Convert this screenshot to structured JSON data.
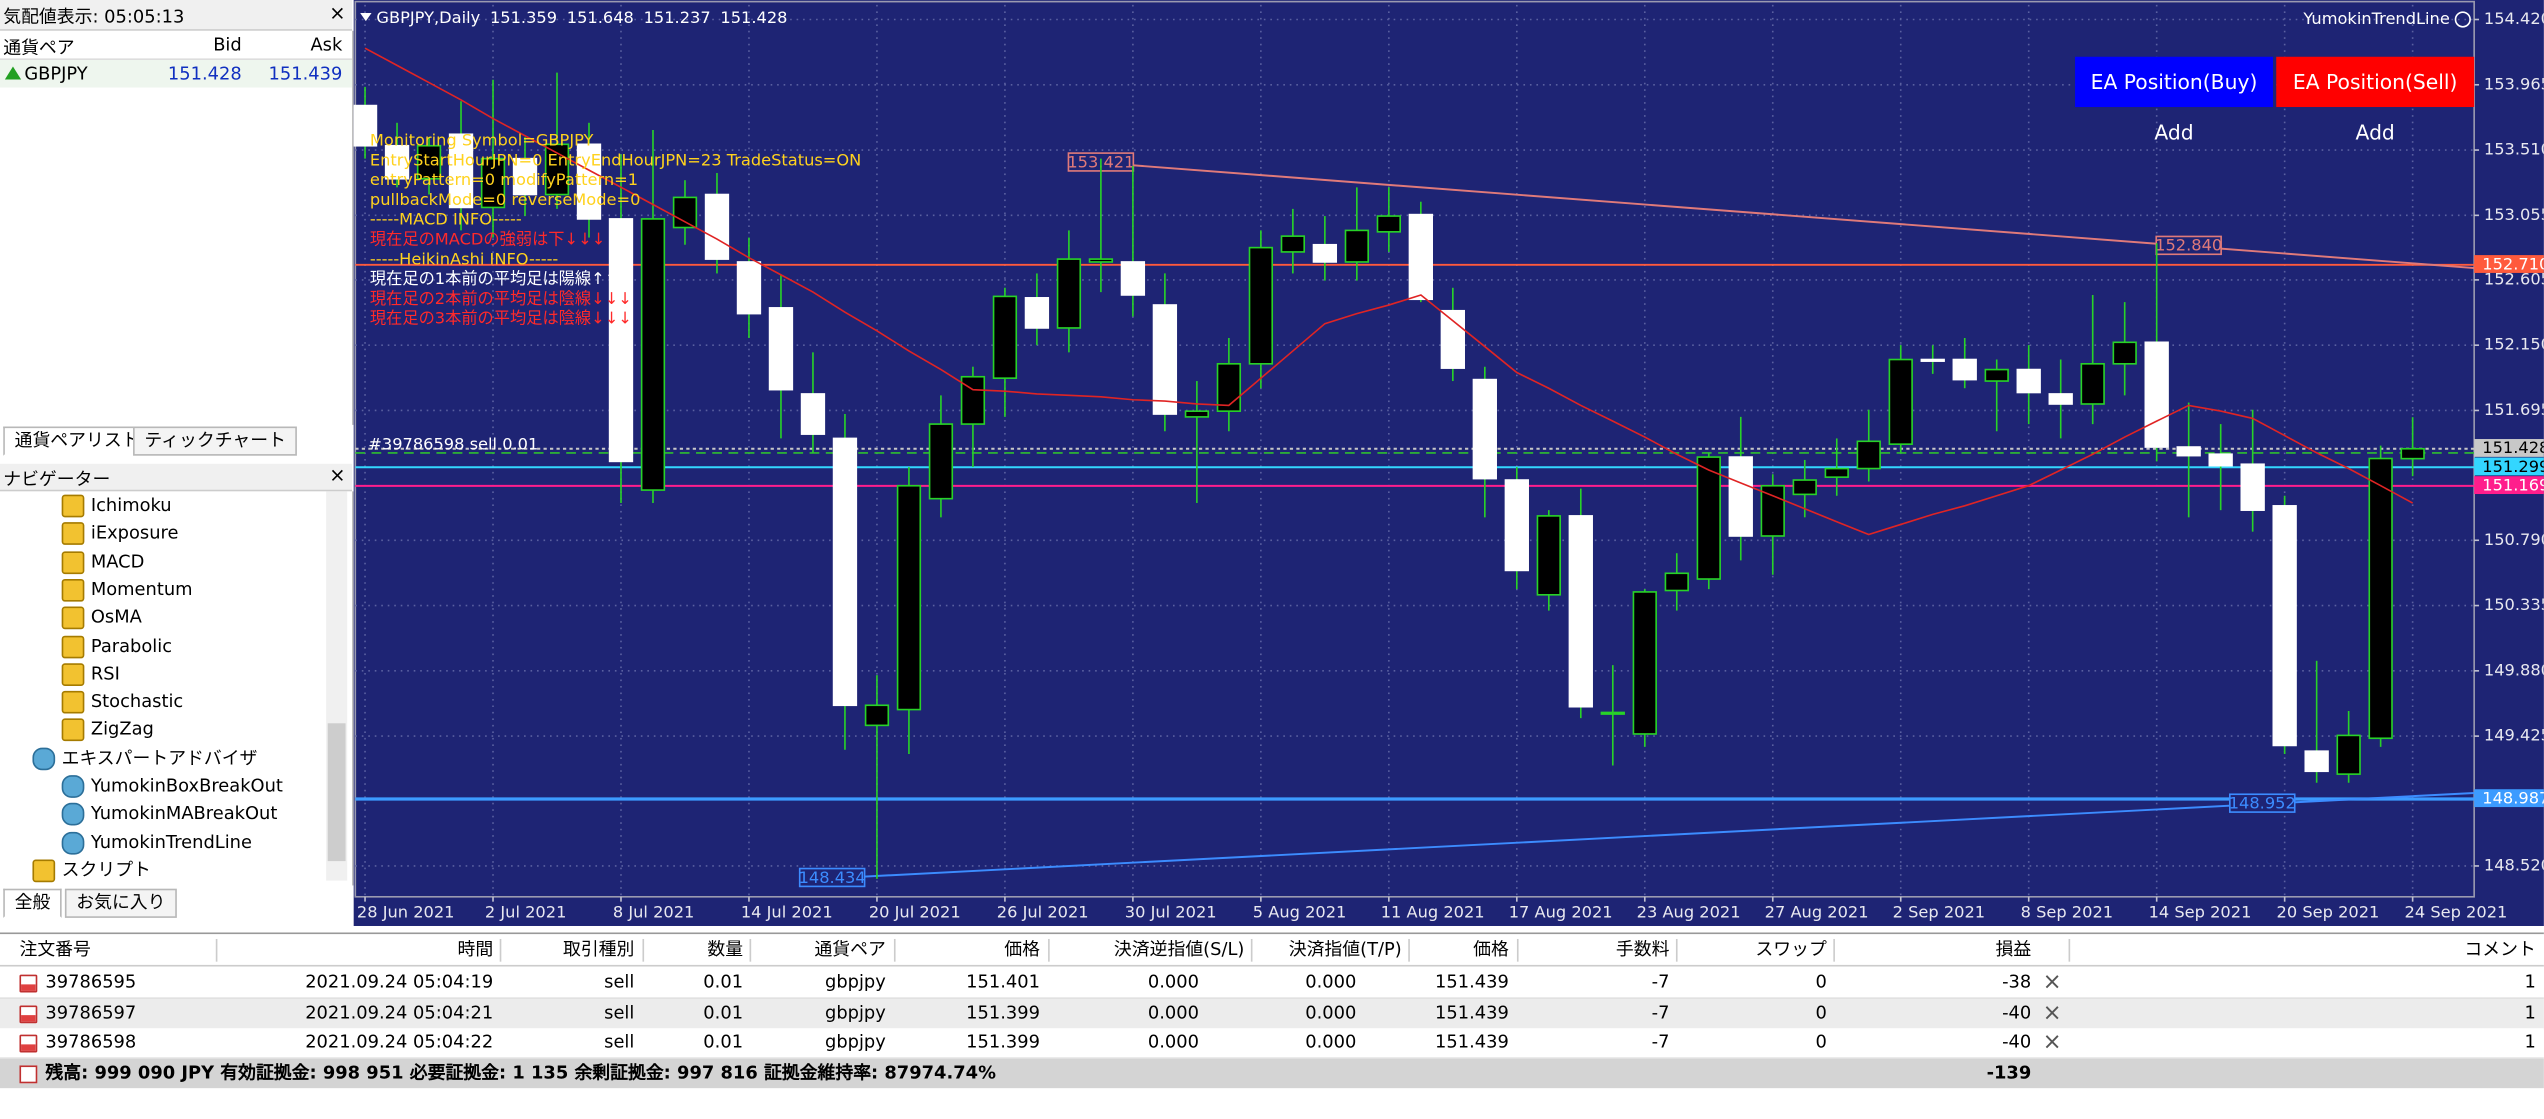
{
  "market_watch": {
    "title": "気配値表示: 05:05:13",
    "headers": [
      "通貨ペア",
      "Bid",
      "Ask"
    ],
    "row": [
      "GBPJPY",
      "151.428",
      "151.439"
    ],
    "tabs": [
      "通貨ペアリスト",
      "ティックチャート"
    ]
  },
  "navigator": {
    "title": "ナビゲーター",
    "indicators": [
      "Ichimoku",
      "iExposure",
      "MACD",
      "Momentum",
      "OsMA",
      "Parabolic",
      "RSI",
      "Stochastic",
      "ZigZag"
    ],
    "experts_folder": "エキスパートアドバイザ",
    "experts": [
      "YumokinBoxBreakOut",
      "YumokinMABreakOut",
      "YumokinTrendLine"
    ],
    "scripts_folder": "スクリプト",
    "tabs": [
      "全般",
      "お気に入り"
    ]
  },
  "chart_data": {
    "type": "candlestick",
    "title": "GBPJPY,Daily",
    "indicator_name": "YumokinTrendLine",
    "categories": [
      "28 Jun 2021",
      null,
      null,
      null,
      "2 Jul 2021",
      null,
      null,
      null,
      "8 Jul 2021",
      null,
      null,
      null,
      "14 Jul 2021",
      null,
      null,
      null,
      "20 Jul 2021",
      null,
      null,
      null,
      "26 Jul 2021",
      null,
      null,
      null,
      "30 Jul 2021",
      null,
      null,
      null,
      "5 Aug 2021",
      null,
      null,
      null,
      "11 Aug 2021",
      null,
      null,
      null,
      "17 Aug 2021",
      null,
      null,
      null,
      "23 Aug 2021",
      null,
      null,
      null,
      "27 Aug 2021",
      null,
      null,
      null,
      "2 Sep 2021",
      null,
      null,
      null,
      "8 Sep 2021",
      null,
      null,
      null,
      "14 Sep 2021",
      null,
      null,
      null,
      "20 Sep 2021",
      null,
      null,
      null,
      "24 Sep 2021"
    ],
    "open": [
      153.82,
      153.54,
      153.31,
      153.62,
      153.11,
      153.45,
      153.2,
      153.55,
      153.03,
      151.14,
      152.97,
      153.2,
      152.73,
      152.41,
      151.81,
      151.5,
      149.5,
      149.61,
      151.08,
      151.6,
      151.92,
      152.48,
      152.27,
      152.73,
      152.73,
      152.43,
      151.65,
      151.69,
      152.02,
      152.8,
      152.85,
      152.73,
      152.94,
      153.06,
      152.39,
      151.91,
      151.21,
      150.41,
      150.96,
      149.58,
      149.44,
      150.44,
      150.52,
      151.37,
      150.82,
      151.11,
      151.23,
      151.29,
      151.46,
      152.05,
      152.05,
      151.9,
      151.98,
      151.81,
      151.74,
      152.02,
      152.17,
      151.44,
      151.39,
      151.32,
      151.03,
      149.32,
      149.16,
      149.41,
      151.359
    ],
    "high": [
      153.95,
      153.7,
      153.6,
      153.85,
      154.0,
      153.6,
      154.05,
      153.7,
      153.48,
      153.65,
      153.3,
      153.35,
      152.9,
      152.64,
      152.1,
      151.67,
      149.85,
      151.3,
      151.8,
      152.0,
      152.55,
      152.65,
      152.95,
      153.45,
      153.4,
      152.65,
      151.9,
      152.2,
      152.95,
      153.1,
      153.05,
      153.25,
      153.25,
      153.15,
      152.55,
      152.0,
      151.3,
      151.0,
      151.15,
      149.92,
      150.45,
      150.7,
      151.4,
      151.65,
      151.25,
      151.35,
      151.5,
      151.7,
      152.15,
      152.15,
      152.2,
      152.05,
      152.15,
      152.05,
      152.5,
      152.45,
      152.86,
      151.75,
      151.6,
      151.7,
      151.1,
      149.95,
      149.6,
      151.45,
      151.648
    ],
    "low": [
      153.45,
      153.25,
      153.2,
      152.95,
      152.9,
      153.05,
      153.1,
      152.9,
      151.05,
      151.05,
      152.85,
      152.65,
      152.2,
      151.5,
      151.4,
      149.33,
      148.43,
      149.3,
      150.95,
      151.3,
      151.65,
      152.15,
      152.1,
      152.52,
      152.35,
      151.55,
      151.05,
      151.55,
      151.85,
      152.65,
      152.6,
      152.6,
      152.8,
      152.45,
      151.9,
      150.95,
      150.45,
      150.3,
      149.55,
      149.22,
      149.35,
      150.3,
      150.45,
      150.65,
      150.55,
      150.95,
      151.1,
      151.2,
      151.4,
      151.95,
      151.85,
      151.55,
      151.6,
      151.5,
      151.6,
      151.8,
      151.34,
      150.95,
      151.0,
      150.85,
      149.3,
      149.1,
      149.1,
      149.35,
      151.237
    ],
    "close": [
      153.54,
      153.31,
      153.54,
      153.11,
      153.45,
      153.2,
      153.55,
      153.03,
      151.34,
      153.03,
      153.18,
      152.75,
      152.37,
      151.84,
      151.53,
      149.64,
      149.64,
      151.17,
      151.6,
      151.93,
      152.49,
      152.27,
      152.75,
      152.75,
      152.5,
      151.67,
      151.69,
      152.02,
      152.83,
      152.91,
      152.73,
      152.95,
      153.05,
      152.47,
      151.99,
      151.22,
      150.58,
      150.96,
      149.63,
      149.59,
      150.43,
      150.56,
      151.37,
      150.82,
      151.17,
      151.21,
      151.29,
      151.48,
      152.05,
      152.04,
      151.91,
      151.98,
      151.82,
      151.74,
      152.02,
      152.17,
      151.44,
      151.38,
      151.31,
      151.0,
      149.36,
      149.18,
      149.43,
      151.36,
      151.428
    ],
    "ma": {
      "color": "#e02424",
      "values": [
        154.22,
        154.1,
        153.98,
        153.86,
        153.73,
        153.61,
        153.49,
        153.37,
        153.25,
        153.13,
        153.01,
        152.89,
        152.76,
        152.64,
        152.52,
        152.38,
        152.25,
        152.11,
        151.98,
        151.84,
        151.83,
        151.81,
        151.8,
        151.79,
        151.77,
        151.76,
        151.74,
        151.73,
        151.92,
        152.11,
        152.3,
        152.37,
        152.43,
        152.5,
        152.32,
        152.14,
        151.96,
        151.85,
        151.73,
        151.62,
        151.51,
        151.39,
        151.28,
        151.19,
        151.1,
        151.01,
        150.92,
        150.83,
        150.9,
        150.97,
        151.03,
        151.1,
        151.17,
        151.28,
        151.39,
        151.51,
        151.62,
        151.73,
        151.69,
        151.64,
        151.52,
        151.4,
        151.29,
        151.17,
        151.05
      ]
    },
    "up_color": "#000000",
    "down_color": "#ffffff",
    "up_outline": "#28d228",
    "wick_color": "#28d228",
    "ylim": [
      148.305,
      154.522
    ],
    "yticks": [
      {
        "value": 154.42,
        "label": "154.420"
      },
      {
        "value": 153.965,
        "label": "153.965"
      },
      {
        "value": 153.51,
        "label": "153.510"
      },
      {
        "value": 153.055,
        "label": "153.055"
      },
      {
        "value": 152.605,
        "label": "152.605"
      },
      {
        "value": 152.15,
        "label": "152.150"
      },
      {
        "value": 151.695,
        "label": "151.695"
      },
      {
        "value": 150.79,
        "label": "150.790"
      },
      {
        "value": 150.335,
        "label": "150.335"
      },
      {
        "value": 149.88,
        "label": "149.880"
      },
      {
        "value": 149.425,
        "label": "149.425"
      },
      {
        "value": 148.52,
        "label": "148.520"
      }
    ],
    "grid": true,
    "levels": [
      {
        "value": 152.71,
        "label": "152.710",
        "color": "#ff5a3c"
      },
      {
        "value": 151.428,
        "label": "151.428",
        "color": "#c8c8c8"
      },
      {
        "value": 151.299,
        "label": "151.299",
        "color": "#33d6ff"
      },
      {
        "value": 151.169,
        "label": "151.169",
        "color": "#ff1e8c"
      },
      {
        "value": 148.987,
        "label": "148.987",
        "color": "#3c9bff"
      }
    ],
    "order_line": {
      "value": 151.399,
      "label": "#39786598 sell 0.01",
      "color": "#2fbf2f"
    },
    "trendlines": [
      {
        "color": "#e07a7a",
        "start": {
          "index": 23,
          "value": 153.421,
          "label": "153.421"
        },
        "end": {
          "index": 57,
          "value": 152.84,
          "label": "152.840"
        }
      },
      {
        "color": "#3c8cff",
        "start": {
          "index": 14.6,
          "value": 148.434,
          "label": "148.434"
        },
        "end": {
          "index": 59.3,
          "value": 148.952,
          "label": "148.952"
        }
      }
    ],
    "info_lines": [
      {
        "text": "Monitoring Symbol=GBPJPY",
        "color": "#ffd21e"
      },
      {
        "text": "EntryStartHourJPN=0 EntryEndHourJPN=23 TradeStatus=ON",
        "color": "#ffd21e"
      },
      {
        "text": "entryPattern=0 modifyPattern=1",
        "color": "#ffd21e"
      },
      {
        "text": "pullbackMode=0 reverseMode=0",
        "color": "#ffd21e"
      },
      {
        "text": "-----MACD INFO-----",
        "color": "#ffd21e"
      },
      {
        "text": "現在足のMACDの強弱は下↓↓↓",
        "color": "#ff2a2a"
      },
      {
        "text": "-----HeikinAshi INFO-----",
        "color": "#ffd21e"
      },
      {
        "text": "現在足の1本前の平均足は陽線↑↑↑",
        "color": "#ffffff"
      },
      {
        "text": "現在足の2本前の平均足は陰線↓↓↓",
        "color": "#ff2a2a"
      },
      {
        "text": "現在足の3本前の平均足は陰線↓↓↓",
        "color": "#ff2a2a"
      }
    ],
    "buttons": [
      {
        "text": "EA Position(Buy) Add",
        "color": "#0000ff"
      },
      {
        "text": "EA Position(Sell) Add",
        "color": "#ff0000"
      }
    ]
  },
  "terminal": {
    "headers": [
      "注文番号",
      "時間",
      "取引種別",
      "数量",
      "通貨ペア",
      "価格",
      "決済逆指値(S/L)",
      "決済指値(T/P)",
      "価格",
      "手数料",
      "スワップ",
      "損益",
      "コメント"
    ],
    "rows": [
      [
        "39786595",
        "2021.09.24 05:04:19",
        "sell",
        "0.01",
        "gbpjpy",
        "151.401",
        "0.000",
        "0.000",
        "151.439",
        "-7",
        "0",
        "-38",
        "1"
      ],
      [
        "39786597",
        "2021.09.24 05:04:21",
        "sell",
        "0.01",
        "gbpjpy",
        "151.399",
        "0.000",
        "0.000",
        "151.439",
        "-7",
        "0",
        "-40",
        "1"
      ],
      [
        "39786598",
        "2021.09.24 05:04:22",
        "sell",
        "0.01",
        "gbpjpy",
        "151.399",
        "0.000",
        "0.000",
        "151.439",
        "-7",
        "0",
        "-40",
        "1"
      ]
    ],
    "summary": "残高: 999 090 JPY  有効証拠金: 998 951  必要証拠金: 1 135  余剰証拠金: 997 816  証拠金維持率: 87974.74%",
    "summary_profit": "-139"
  }
}
